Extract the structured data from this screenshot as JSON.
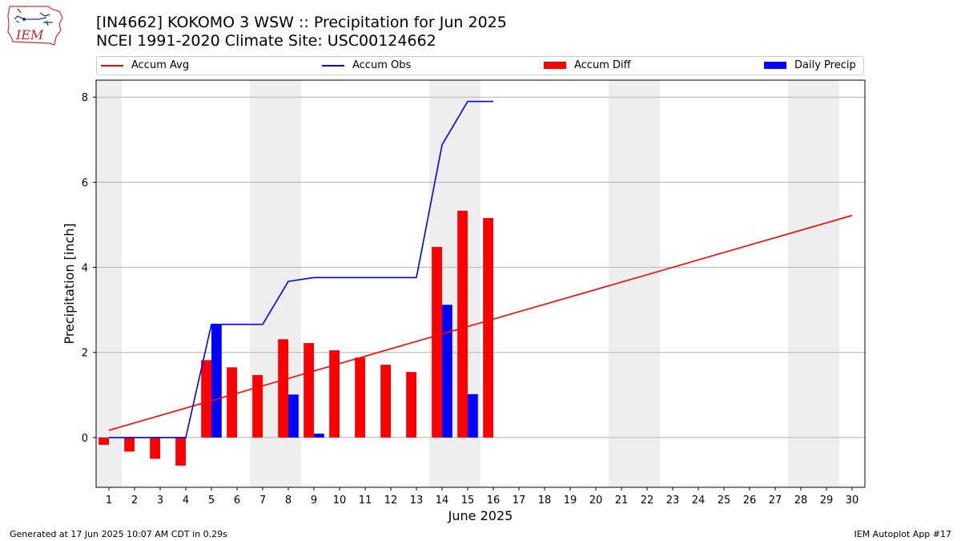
{
  "header": {
    "title_line1": "[IN4662] KOKOMO 3 WSW :: Precipitation for Jun 2025",
    "title_line2": "NCEI 1991-2020 Climate Site: USC00124662",
    "logo_text": "IEM"
  },
  "footer": {
    "left": "Generated at 17 Jun 2025 10:07 AM CDT in 0.29s",
    "right": "IEM Autoplot App #17"
  },
  "legend": [
    {
      "label": "Accum Avg",
      "kind": "line",
      "color": "#ff0000"
    },
    {
      "label": "Accum Obs",
      "kind": "line",
      "color": "#0000ff"
    },
    {
      "label": "Accum Diff",
      "kind": "bar",
      "color": "#ff0000"
    },
    {
      "label": "Daily Precip",
      "kind": "bar",
      "color": "#0000ff"
    }
  ],
  "chart_data": {
    "type": "bar",
    "xlabel": "June 2025",
    "ylabel": "Precipitation [inch]",
    "x": [
      1,
      2,
      3,
      4,
      5,
      6,
      7,
      8,
      9,
      10,
      11,
      12,
      13,
      14,
      15,
      16,
      17,
      18,
      19,
      20,
      21,
      22,
      23,
      24,
      25,
      26,
      27,
      28,
      29,
      30
    ],
    "xlim": [
      0.5,
      30.5
    ],
    "ylim": [
      -1.17,
      8.4
    ],
    "yticks": [
      0,
      2,
      4,
      6,
      8
    ],
    "grid": "horizontal",
    "legend_position": "top",
    "weekend_shading": [
      [
        0.5,
        1.5
      ],
      [
        6.5,
        8.5
      ],
      [
        13.5,
        15.5
      ],
      [
        20.5,
        22.5
      ],
      [
        27.5,
        29.5
      ]
    ],
    "shading_color": "#eeeeee",
    "series": [
      {
        "name": "Accum Avg",
        "kind": "line",
        "color": "#ff0000",
        "x": [
          1,
          30
        ],
        "values": [
          0.17,
          5.22
        ]
      },
      {
        "name": "Accum Obs",
        "kind": "line",
        "color": "#0000ff",
        "x": [
          1,
          2,
          3,
          4,
          5,
          6,
          7,
          8,
          9,
          10,
          11,
          12,
          13,
          14,
          15,
          16
        ],
        "values": [
          0.0,
          0.0,
          0.0,
          0.0,
          2.66,
          2.66,
          2.66,
          3.67,
          3.76,
          3.76,
          3.76,
          3.76,
          3.76,
          6.88,
          7.9,
          7.9
        ]
      },
      {
        "name": "Accum Diff",
        "kind": "bar",
        "color": "#ff0000",
        "x": [
          1,
          2,
          3,
          4,
          5,
          6,
          7,
          8,
          9,
          10,
          11,
          12,
          13,
          14,
          15,
          16
        ],
        "values": [
          -0.17,
          -0.33,
          -0.5,
          -0.66,
          1.82,
          1.65,
          1.47,
          2.31,
          2.22,
          2.05,
          1.88,
          1.71,
          1.54,
          4.48,
          5.33,
          5.16
        ]
      },
      {
        "name": "Daily Precip",
        "kind": "bar",
        "color": "#0000ff",
        "x": [
          1,
          2,
          3,
          4,
          5,
          6,
          7,
          8,
          9,
          10,
          11,
          12,
          13,
          14,
          15,
          16
        ],
        "values": [
          0,
          0,
          0,
          0,
          2.66,
          0,
          0,
          1.01,
          0.09,
          0,
          0,
          0,
          0,
          3.12,
          1.02,
          0
        ]
      }
    ]
  }
}
